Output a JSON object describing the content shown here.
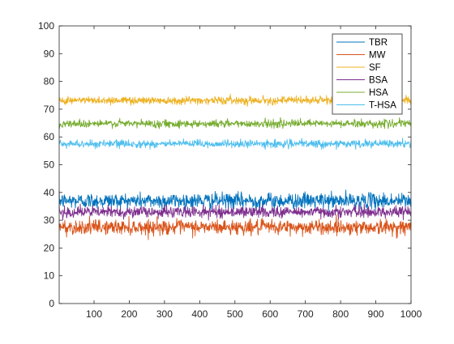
{
  "chart_data": {
    "type": "line",
    "title": "",
    "xlabel": "",
    "ylabel": "",
    "xlim": [
      1,
      1000
    ],
    "ylim": [
      0,
      100
    ],
    "x_ticks": [
      100,
      200,
      300,
      400,
      500,
      600,
      700,
      800,
      900,
      1000
    ],
    "y_ticks": [
      0,
      10,
      20,
      30,
      40,
      50,
      60,
      70,
      80,
      90,
      100
    ],
    "grid": false,
    "legend_position": "top-right",
    "x": {
      "start": 1,
      "end": 1000,
      "step": 1
    },
    "series": [
      {
        "name": "TBR",
        "color": "#0072BD",
        "mean": 37,
        "noise_std": 1.4,
        "min": 33,
        "max": 43
      },
      {
        "name": "MW",
        "color": "#D95319",
        "mean": 27.5,
        "noise_std": 1.3,
        "min": 23,
        "max": 33
      },
      {
        "name": "SF",
        "color": "#EDB120",
        "mean": 73.2,
        "noise_std": 0.7,
        "min": 71,
        "max": 76
      },
      {
        "name": "BSA",
        "color": "#7E2F8E",
        "mean": 33,
        "noise_std": 1.0,
        "min": 30,
        "max": 37
      },
      {
        "name": "HSA",
        "color": "#77AC30",
        "mean": 64.8,
        "noise_std": 0.7,
        "min": 63,
        "max": 67
      },
      {
        "name": "T-HSA",
        "color": "#4DBEEE",
        "mean": 57.5,
        "noise_std": 0.7,
        "min": 55.5,
        "max": 60
      }
    ]
  }
}
